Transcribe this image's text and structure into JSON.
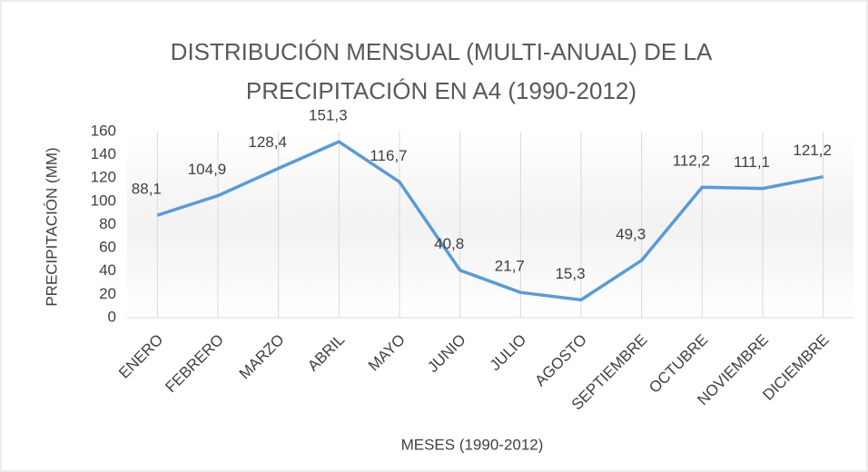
{
  "chart_data": {
    "type": "line",
    "title": "DISTRIBUCIÓN MENSUAL (MULTI-ANUAL) DE LA PRECIPITACIÓN EN A4 (1990-2012)",
    "x_label": "MESES (1990-2012)",
    "y_label": "PRECIPITACIÓN (MM)",
    "categories": [
      "ENERO",
      "FEBRERO",
      "MARZO",
      "ABRIL",
      "MAYO",
      "JUNIO",
      "JULIO",
      "AGOSTO",
      "SEPTIEMBRE",
      "OCTUBRE",
      "NOVIEMBRE",
      "DICIEMBRE"
    ],
    "series": [
      {
        "name": "Precipitación",
        "color": "#5b9bd5",
        "values": [
          88.1,
          104.9,
          128.4,
          151.3,
          116.7,
          40.8,
          21.7,
          15.3,
          49.3,
          112.2,
          111.1,
          121.2
        ],
        "value_labels": [
          "88,1",
          "104,9",
          "128,4",
          "151,3",
          "116,7",
          "40,8",
          "21,7",
          "15,3",
          "49,3",
          "112,2",
          "111,1",
          "121,2"
        ]
      }
    ],
    "ylim": [
      0,
      160
    ],
    "yticks": [
      0,
      20,
      40,
      60,
      80,
      100,
      120,
      140,
      160
    ],
    "grid": "x",
    "legend": false
  }
}
